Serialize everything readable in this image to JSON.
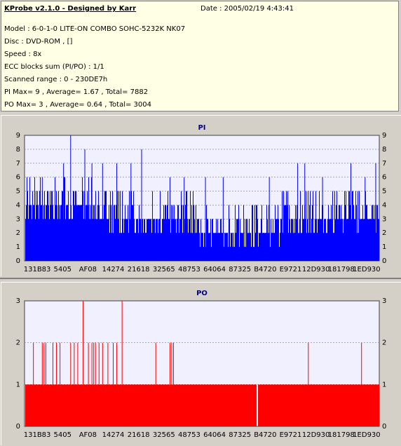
{
  "header": {
    "title": "KProbe v2.1.0 - Designed by Karr",
    "date": "Date : 2005/02/19 4:43:41",
    "lines": [
      "Model : 6-0-1-0 LITE-ON COMBO SOHC-5232K NK07",
      "Disc : DVD-ROM ,  []",
      "Speed : 8x",
      "ECC blocks sum (PI/PO) : 1/1",
      "Scanned range : 0 - 230DE7h",
      "PI Max= 9 , Average= 1.67 , Total= 7882",
      "PO Max= 3 , Average= 0.64 , Total= 3004"
    ]
  },
  "colors": {
    "pi": "#0000ff",
    "po": "#ff0000",
    "plot_bg": "#f0f0ff",
    "grid": "#c0c0c0",
    "title": "#000080"
  },
  "chart_data": [
    {
      "type": "bar",
      "title": "PI",
      "ylim": [
        0,
        9
      ],
      "yticks": [
        0,
        1,
        2,
        3,
        4,
        5,
        6,
        7,
        8,
        9
      ],
      "xticks": [
        "131B83",
        "5405",
        "AF08",
        "14274",
        "21618",
        "32565",
        "48753",
        "64064",
        "87325",
        "B4720",
        "E9721",
        "12D930",
        "181798",
        "1ED930"
      ],
      "grid": true,
      "baseline_profile": [
        {
          "x_frac": 0.0,
          "value": 4
        },
        {
          "x_frac": 0.1,
          "value": 4
        },
        {
          "x_frac": 0.2,
          "value": 3
        },
        {
          "x_frac": 0.3,
          "value": 3
        },
        {
          "x_frac": 0.4,
          "value": 3
        },
        {
          "x_frac": 0.48,
          "value": 2
        },
        {
          "x_frac": 0.55,
          "value": 2
        },
        {
          "x_frac": 0.65,
          "value": 2
        },
        {
          "x_frac": 0.72,
          "value": 3
        },
        {
          "x_frac": 0.8,
          "value": 3
        },
        {
          "x_frac": 0.9,
          "value": 3
        },
        {
          "x_frac": 1.0,
          "value": 4
        }
      ],
      "peaks": [
        {
          "x_frac": 0.13,
          "value": 9
        },
        {
          "x_frac": 0.17,
          "value": 8
        },
        {
          "x_frac": 0.33,
          "value": 8
        },
        {
          "x_frac": 0.11,
          "value": 7
        },
        {
          "x_frac": 0.19,
          "value": 7
        },
        {
          "x_frac": 0.22,
          "value": 7
        },
        {
          "x_frac": 0.26,
          "value": 7
        },
        {
          "x_frac": 0.3,
          "value": 7
        },
        {
          "x_frac": 0.77,
          "value": 7
        },
        {
          "x_frac": 0.79,
          "value": 7
        },
        {
          "x_frac": 0.92,
          "value": 7
        },
        {
          "x_frac": 0.99,
          "value": 7
        },
        {
          "x_frac": 0.05,
          "value": 6
        },
        {
          "x_frac": 0.41,
          "value": 6
        },
        {
          "x_frac": 0.45,
          "value": 6
        },
        {
          "x_frac": 0.51,
          "value": 6
        },
        {
          "x_frac": 0.56,
          "value": 6
        },
        {
          "x_frac": 0.69,
          "value": 6
        },
        {
          "x_frac": 0.84,
          "value": 6
        },
        {
          "x_frac": 0.96,
          "value": 6
        }
      ]
    },
    {
      "type": "bar",
      "title": "PO",
      "ylim": [
        0,
        3
      ],
      "yticks": [
        0,
        1,
        2,
        3
      ],
      "xticks": [
        "131B83",
        "5405",
        "AF08",
        "14274",
        "21618",
        "32565",
        "48753",
        "64064",
        "87325",
        "B4720",
        "E9721",
        "12D930",
        "181798",
        "1ED930"
      ],
      "grid": true,
      "baseline": 1,
      "gaps": [
        0.655
      ],
      "peaks": [
        {
          "x_frac": 0.165,
          "value": 3
        },
        {
          "x_frac": 0.275,
          "value": 3
        },
        {
          "x_frac": 0.025,
          "value": 2
        },
        {
          "x_frac": 0.05,
          "value": 2
        },
        {
          "x_frac": 0.055,
          "value": 2
        },
        {
          "x_frac": 0.06,
          "value": 2
        },
        {
          "x_frac": 0.08,
          "value": 2
        },
        {
          "x_frac": 0.09,
          "value": 2
        },
        {
          "x_frac": 0.1,
          "value": 2
        },
        {
          "x_frac": 0.13,
          "value": 2
        },
        {
          "x_frac": 0.14,
          "value": 2
        },
        {
          "x_frac": 0.15,
          "value": 2
        },
        {
          "x_frac": 0.18,
          "value": 2
        },
        {
          "x_frac": 0.19,
          "value": 2
        },
        {
          "x_frac": 0.195,
          "value": 2
        },
        {
          "x_frac": 0.2,
          "value": 2
        },
        {
          "x_frac": 0.21,
          "value": 2
        },
        {
          "x_frac": 0.22,
          "value": 2
        },
        {
          "x_frac": 0.235,
          "value": 2
        },
        {
          "x_frac": 0.25,
          "value": 2
        },
        {
          "x_frac": 0.26,
          "value": 2
        },
        {
          "x_frac": 0.37,
          "value": 2
        },
        {
          "x_frac": 0.41,
          "value": 2
        },
        {
          "x_frac": 0.415,
          "value": 2
        },
        {
          "x_frac": 0.42,
          "value": 2
        },
        {
          "x_frac": 0.8,
          "value": 2
        },
        {
          "x_frac": 0.95,
          "value": 2
        }
      ]
    }
  ]
}
